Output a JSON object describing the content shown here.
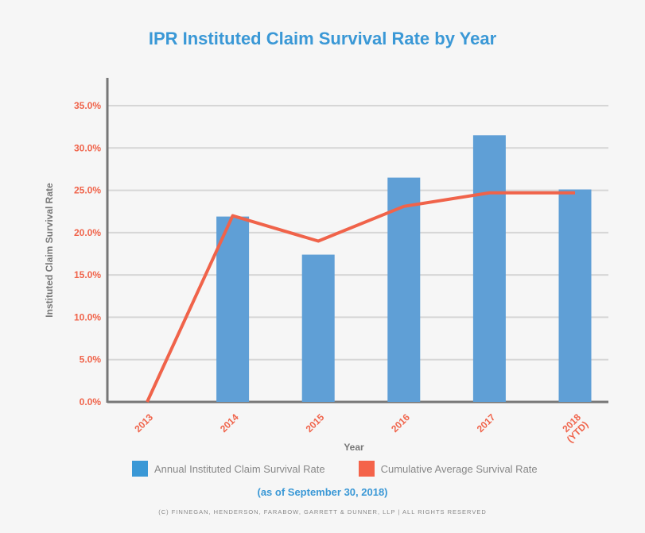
{
  "chart_data": {
    "type": "bar+line",
    "title": "IPR Instituted Claim Survival Rate by Year",
    "xlabel": "Year",
    "ylabel": "Instituted Claim Survival Rate",
    "categories": [
      "2013",
      "2014",
      "2015",
      "2016",
      "2017",
      "2018 (YTD)"
    ],
    "ylim": [
      0,
      35
    ],
    "yticks": [
      "0.0%",
      "5.0%",
      "10.0%",
      "15.0%",
      "20.0%",
      "25.0%",
      "30.0%",
      "35.0%"
    ],
    "grid": true,
    "series": [
      {
        "name": "Annual Instituted Claim Survival Rate",
        "type": "bar",
        "color": "#5f9fd6",
        "values": [
          null,
          21.9,
          17.4,
          26.5,
          31.5,
          25.1
        ]
      },
      {
        "name": "Cumulative Average Survival Rate",
        "type": "line",
        "color": "#f0634a",
        "values": [
          0,
          22.0,
          19.0,
          23.1,
          24.7,
          24.7
        ]
      }
    ],
    "legend_position": "bottom",
    "subtitle": "(as of September 30, 2018)"
  },
  "legend_colors": [
    "#3a98d6",
    "#f4634a"
  ],
  "footer": "(C) FINNEGAN, HENDERSON, FARABOW, GARRETT & DUNNER, LLP | ALL RIGHTS RESERVED"
}
